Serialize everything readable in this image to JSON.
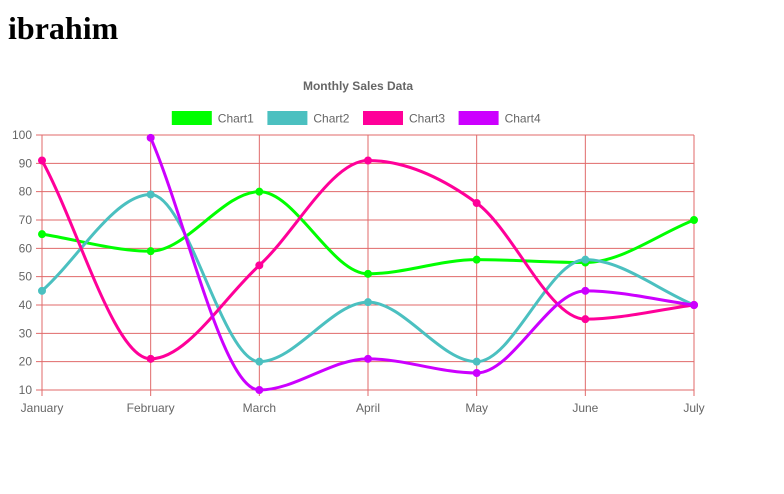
{
  "page": {
    "heading": "ibrahim"
  },
  "colors": {
    "grid": "#e06a6a",
    "axis_text": "#666666",
    "title_text": "#666666"
  },
  "chart_data": {
    "type": "line",
    "title": "Monthly Sales Data",
    "xlabel": "",
    "ylabel": "",
    "categories": [
      "January",
      "February",
      "March",
      "April",
      "May",
      "June",
      "July"
    ],
    "ylim": [
      10,
      100
    ],
    "yticks": [
      10,
      20,
      30,
      40,
      50,
      60,
      70,
      80,
      90,
      100
    ],
    "grid": true,
    "legend_position": "top",
    "line_style": "smooth",
    "series": [
      {
        "name": "Chart1",
        "color": "#00ff00",
        "values": [
          65,
          59,
          80,
          51,
          56,
          55,
          70
        ]
      },
      {
        "name": "Chart2",
        "color": "#4bc0c0",
        "values": [
          45,
          79,
          20,
          41,
          20,
          56,
          40
        ]
      },
      {
        "name": "Chart3",
        "color": "#ff0099",
        "values": [
          91,
          21,
          54,
          91,
          76,
          35,
          40
        ]
      },
      {
        "name": "Chart4",
        "color": "#cc00ff",
        "values": [
          null,
          99,
          10,
          21,
          16,
          45,
          40
        ]
      }
    ]
  }
}
